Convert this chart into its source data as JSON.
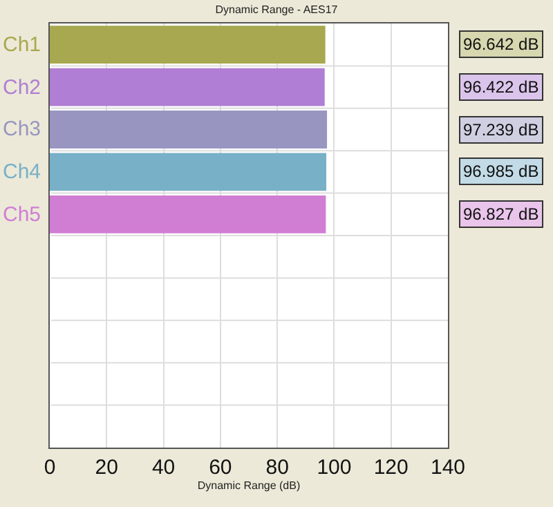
{
  "chart_data": {
    "type": "bar",
    "orientation": "horizontal",
    "title": "Dynamic Range - AES17",
    "xlabel": "Dynamic Range (dB)",
    "categories": [
      "Ch1",
      "Ch2",
      "Ch3",
      "Ch4",
      "Ch5",
      null,
      null,
      null,
      null,
      null
    ],
    "values": [
      96.642,
      96.422,
      97.239,
      96.985,
      96.827,
      null,
      null,
      null,
      null,
      null
    ],
    "colors": [
      "#a8a850",
      "#b07ed4",
      "#9896c0",
      "#78b0c8",
      "#d07ed4",
      null,
      null,
      null,
      null,
      null
    ],
    "value_labels": [
      "96.642 dB",
      "96.422 dB",
      "97.239 dB",
      "96.985 dB",
      "96.827 dB",
      null,
      null,
      null,
      null,
      null
    ],
    "xlim": [
      0,
      140
    ],
    "xticks": [
      0,
      20,
      40,
      60,
      80,
      100,
      120,
      140
    ],
    "grid": true
  }
}
